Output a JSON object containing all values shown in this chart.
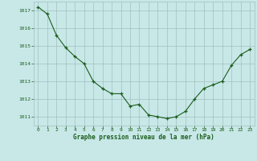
{
  "x": [
    0,
    1,
    2,
    3,
    4,
    5,
    6,
    7,
    8,
    9,
    10,
    11,
    12,
    13,
    14,
    15,
    16,
    17,
    18,
    19,
    20,
    21,
    22,
    23
  ],
  "y": [
    1017.2,
    1016.8,
    1015.6,
    1014.9,
    1014.4,
    1014.0,
    1013.0,
    1012.6,
    1012.3,
    1012.3,
    1011.6,
    1011.7,
    1011.1,
    1011.0,
    1010.9,
    1011.0,
    1011.3,
    1012.0,
    1012.6,
    1012.8,
    1013.0,
    1013.9,
    1014.5,
    1014.8
  ],
  "line_color": "#1a5c1a",
  "marker": "+",
  "bg_color": "#c8e8e8",
  "grid_color": "#a0c0c0",
  "xlabel": "Graphe pression niveau de la mer (hPa)",
  "xlabel_color": "#1a5c1a",
  "tick_color": "#1a5c1a",
  "ylim": [
    1010.5,
    1017.5
  ],
  "yticks": [
    1011,
    1012,
    1013,
    1014,
    1015,
    1016,
    1017
  ],
  "xticks": [
    0,
    1,
    2,
    3,
    4,
    5,
    6,
    7,
    8,
    9,
    10,
    11,
    12,
    13,
    14,
    15,
    16,
    17,
    18,
    19,
    20,
    21,
    22,
    23
  ],
  "xlim": [
    -0.5,
    23.5
  ],
  "figsize": [
    3.2,
    2.0
  ],
  "dpi": 100
}
